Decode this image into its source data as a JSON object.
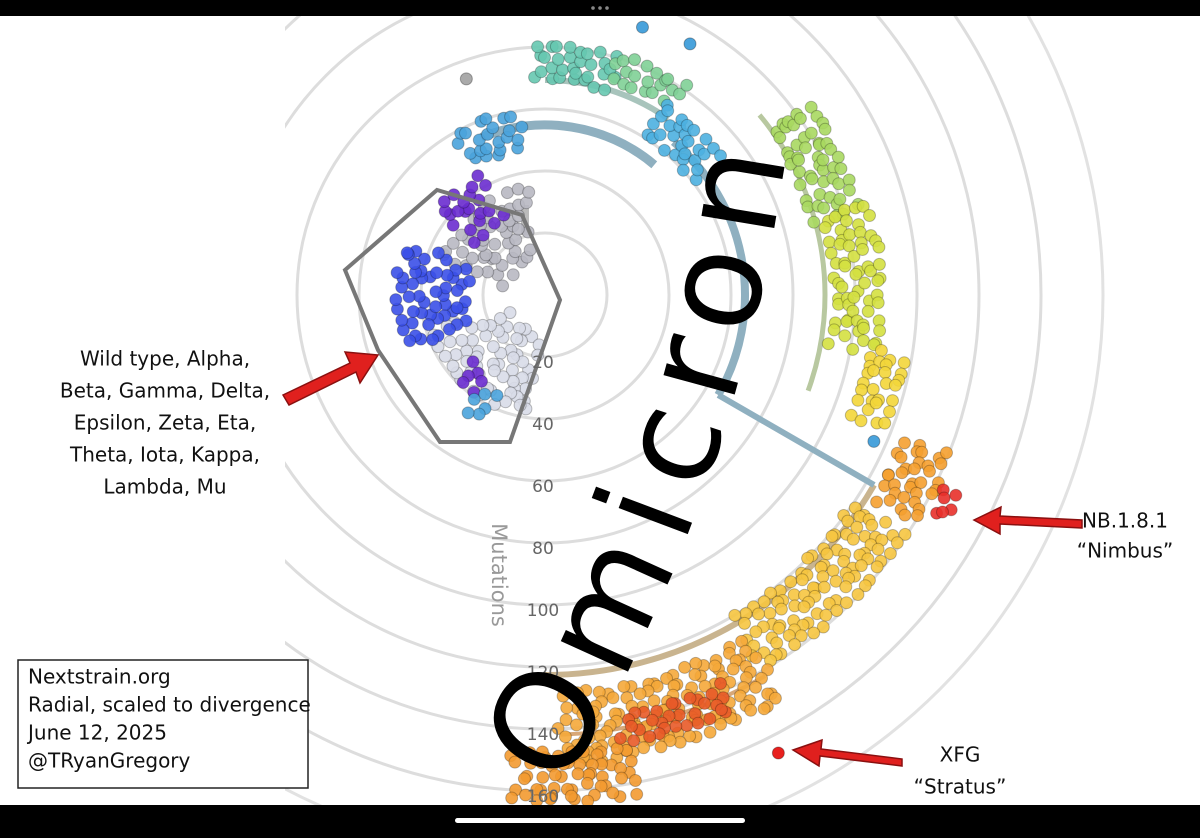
{
  "chart_data": {
    "type": "radial-tree",
    "title": "Omicron",
    "axis_label": "Mutations",
    "rlim": [
      0,
      180
    ],
    "rticks": [
      20,
      40,
      60,
      80,
      100,
      120,
      140,
      160
    ],
    "grid": true,
    "annotations": [
      {
        "lines": [
          "Wild type, Alpha,",
          "Beta, Gamma, Delta,",
          "Epsilon, Zeta, Eta,",
          "Theta, Iota, Kappa,",
          "Lambda, Mu"
        ]
      },
      {
        "lines": [
          "NB.1.8.1",
          "“Nimbus”"
        ]
      },
      {
        "lines": [
          "XFG",
          "“Stratus”"
        ]
      }
    ]
  },
  "source_box": {
    "lines": [
      "Nextstrain.org",
      "Radial, scaled to divergence",
      "June 12, 2025",
      "@TRyanGregory"
    ]
  }
}
